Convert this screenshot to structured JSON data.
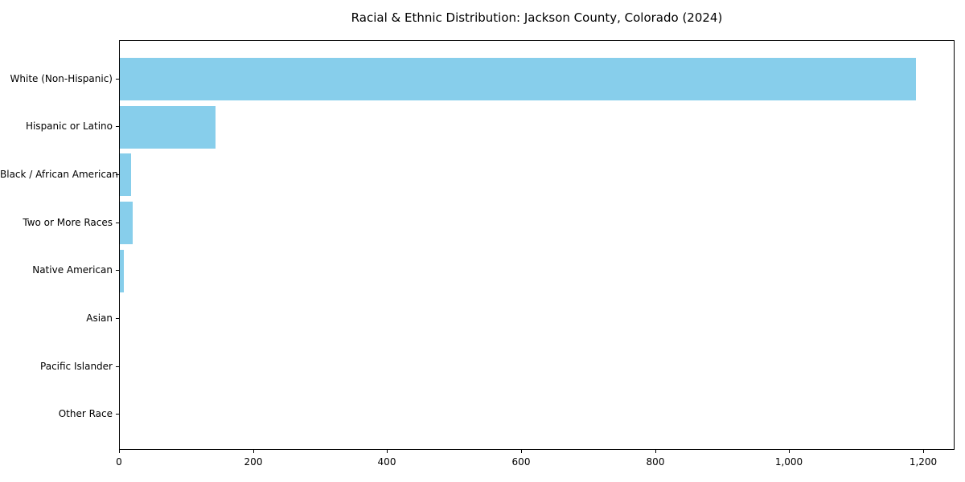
{
  "title": "Racial & Ethnic Distribution: Jackson County, Colorado (2024)",
  "chart_data": {
    "type": "bar",
    "orientation": "horizontal",
    "title": "Racial & Ethnic Distribution: Jackson County, Colorado (2024)",
    "categories": [
      "White (Non-Hispanic)",
      "Hispanic or Latino",
      "Black / African American",
      "Two or More Races",
      "Native American",
      "Asian",
      "Pacific Islander",
      "Other Race"
    ],
    "values": [
      1188,
      143,
      17,
      19,
      6,
      0,
      0,
      0
    ],
    "xlabel": "",
    "ylabel": "",
    "xlim": [
      0,
      1247
    ],
    "x_ticks": [
      0,
      200,
      400,
      600,
      800,
      1000,
      1200
    ],
    "x_tick_labels": [
      "0",
      "200",
      "400",
      "600",
      "800",
      "1,000",
      "1,200"
    ],
    "bar_color": "#87ceeb",
    "axis_color": "#000000",
    "text_color": "#000000",
    "background_color": "#ffffff",
    "grid": false,
    "legend": "none"
  }
}
